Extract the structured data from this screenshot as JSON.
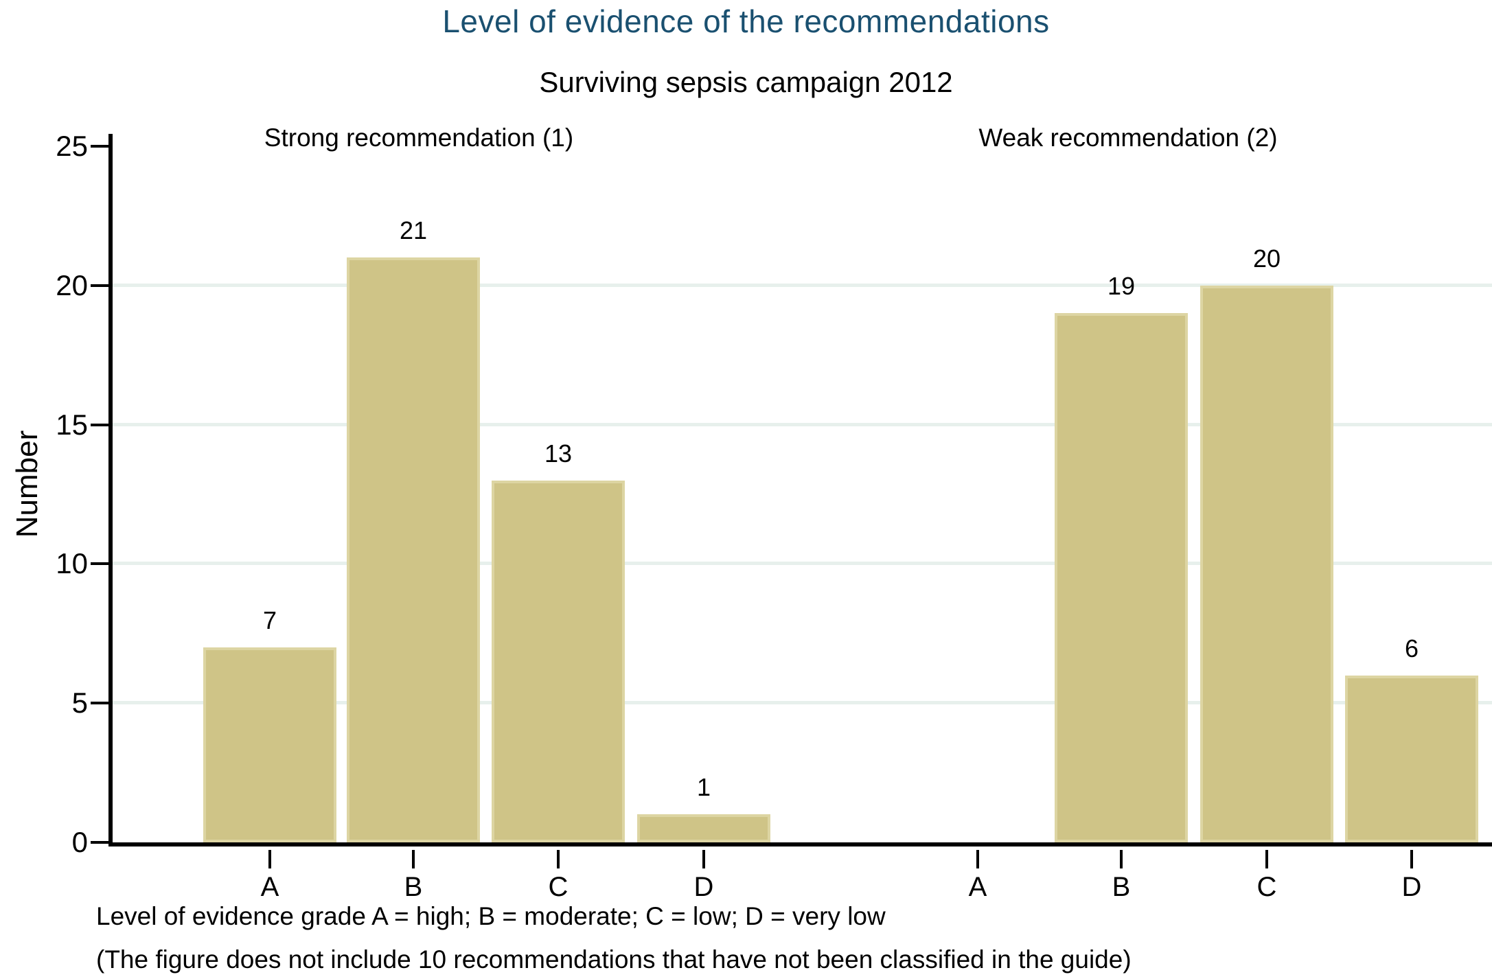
{
  "title": "Level of evidence of the recommendations",
  "subtitle": "Surviving sepsis campaign 2012",
  "ylabel": "Number",
  "footer": {
    "line1": "Level of evidence grade A = high; B = moderate; C = low; D = very low",
    "line2": "(The figure does not include 10 recommendations that have not been classified in the guide)"
  },
  "colors": {
    "title_color": "#1a5070",
    "bar_fill": "#cfc487",
    "bar_border": "#ddd5a3",
    "gridline": "#e7f0ec",
    "axis_color": "#000000",
    "text_color": "#000000"
  },
  "chart_data": {
    "type": "bar",
    "title": "Level of evidence of the recommendations",
    "subtitle": "Surviving sepsis campaign 2012",
    "xlabel": "",
    "ylabel": "Number",
    "ylim": [
      0,
      25
    ],
    "yticks": [
      0,
      5,
      10,
      15,
      20,
      25
    ],
    "gridlines_at": [
      5,
      10,
      15,
      20
    ],
    "grid": true,
    "legend": false,
    "categories": [
      "A",
      "B",
      "C",
      "D"
    ],
    "series": [
      {
        "name": "Strong recommendation (1)",
        "values": [
          7,
          21,
          13,
          1
        ]
      },
      {
        "name": "Weak recommendation (2)",
        "values": [
          0,
          19,
          20,
          6
        ]
      }
    ],
    "annotations": [
      "Level of evidence grade A = high; B = moderate; C = low; D = very low",
      "(The figure does not include 10 recommendations that have not been classified in the guide)"
    ]
  }
}
